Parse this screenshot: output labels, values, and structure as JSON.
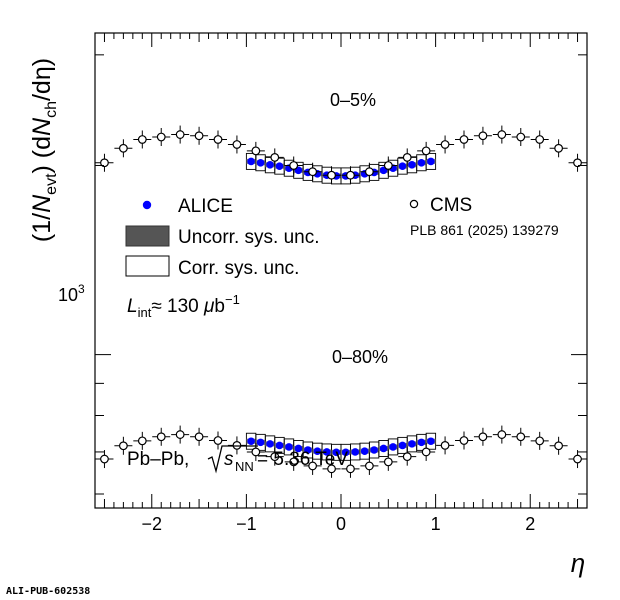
{
  "chart_data": {
    "type": "scatter",
    "x_axis": {
      "label": "η",
      "range": [
        -2.6,
        2.6
      ],
      "major_ticks": [
        -2,
        -1,
        0,
        1,
        2
      ],
      "major_tick_labels": [
        "−2",
        "−1",
        "0",
        "1",
        "2"
      ]
    },
    "y_axis": {
      "label_parts": {
        "prefix": "(1/",
        "N": "N",
        "sub_evt": "evt",
        "mid": ") (d",
        "N2": "N",
        "sub_ch": "ch",
        "suffix": "/dη)"
      },
      "scale": "log",
      "range": [
        570,
        3250
      ],
      "labeled_ticks": [
        1000
      ],
      "labeled_tick_text": {
        "base": "10",
        "exp": "3"
      },
      "minor_ticks": [
        600,
        700,
        800,
        900,
        2000,
        3000
      ]
    },
    "grid": false,
    "legend": {
      "position": "left-middle",
      "entries": [
        {
          "label": "ALICE",
          "marker": "filled-circle",
          "color": "#0000ff"
        },
        {
          "label": "Uncorr. sys. unc.",
          "marker": "filled-box",
          "color": "#555555"
        },
        {
          "label": "Corr. sys. unc.",
          "marker": "open-box"
        }
      ]
    },
    "cms_legend": {
      "label": "CMS",
      "marker": "open-circle",
      "reference": "PLB 861 (2025) 139279"
    },
    "annotations": {
      "luminosity": {
        "L": "L",
        "sub": "int",
        "approx": "≈ 130 ",
        "mu": "μ",
        "unit": "b",
        "sup": "−1"
      },
      "system": {
        "prefix": "Pb–Pb, ",
        "s": "s",
        "sub": "NN",
        "suffix": " = 5.36 TeV"
      }
    },
    "series": [
      {
        "name": "ALICE",
        "label": "0–5%",
        "experiment": "ALICE",
        "centrality": "0–5%",
        "x": [
          -0.95,
          -0.85,
          -0.75,
          -0.65,
          -0.55,
          -0.45,
          -0.35,
          -0.25,
          -0.15,
          -0.05,
          0.05,
          0.15,
          0.25,
          0.35,
          0.45,
          0.55,
          0.65,
          0.75,
          0.85,
          0.95
        ],
        "y": [
          2030,
          2020,
          2005,
          1995,
          1980,
          1965,
          1950,
          1940,
          1930,
          1925,
          1925,
          1930,
          1940,
          1950,
          1965,
          1980,
          1995,
          2005,
          2020,
          2030
        ]
      },
      {
        "name": "CMS",
        "centrality": "0–5%",
        "experiment": "CMS",
        "x": [
          -2.5,
          -2.3,
          -2.1,
          -1.9,
          -1.7,
          -1.5,
          -1.3,
          -1.1,
          -0.9,
          -0.7,
          -0.5,
          -0.3,
          -0.1,
          0.1,
          0.3,
          0.5,
          0.7,
          0.9,
          1.1,
          1.3,
          1.5,
          1.7,
          1.9,
          2.1,
          2.3,
          2.5
        ],
        "y": [
          2020,
          2130,
          2200,
          2220,
          2240,
          2230,
          2200,
          2160,
          2110,
          2060,
          2000,
          1955,
          1930,
          1930,
          1955,
          2000,
          2060,
          2110,
          2160,
          2200,
          2230,
          2240,
          2220,
          2200,
          2130,
          2020
        ]
      },
      {
        "name": "ALICE",
        "label": "0–80%",
        "experiment": "ALICE",
        "centrality": "0–80%",
        "x": [
          -0.95,
          -0.85,
          -0.75,
          -0.65,
          -0.55,
          -0.45,
          -0.35,
          -0.25,
          -0.15,
          -0.05,
          0.05,
          0.15,
          0.25,
          0.35,
          0.45,
          0.55,
          0.65,
          0.75,
          0.85,
          0.95
        ],
        "y": [
          728,
          725,
          721,
          717,
          713,
          709,
          705,
          702,
          700,
          699,
          699,
          700,
          702,
          705,
          709,
          713,
          717,
          721,
          725,
          728
        ]
      },
      {
        "name": "CMS",
        "centrality": "0–80%",
        "experiment": "CMS",
        "x": [
          -2.5,
          -2.3,
          -2.1,
          -1.9,
          -1.7,
          -1.5,
          -1.3,
          -1.1,
          -0.9,
          -0.7,
          -0.5,
          -0.3,
          -0.1,
          0.1,
          0.3,
          0.5,
          0.7,
          0.9,
          1.1,
          1.3,
          1.5,
          1.7,
          1.9,
          2.1,
          2.3,
          2.5
        ],
        "y": [
          682,
          716,
          729,
          740,
          746,
          740,
          730,
          717,
          700,
          688,
          675,
          665,
          658,
          658,
          665,
          675,
          688,
          700,
          717,
          730,
          740,
          746,
          740,
          729,
          716,
          682
        ]
      }
    ]
  },
  "footer": {
    "id": "ALI-PUB-602538"
  }
}
